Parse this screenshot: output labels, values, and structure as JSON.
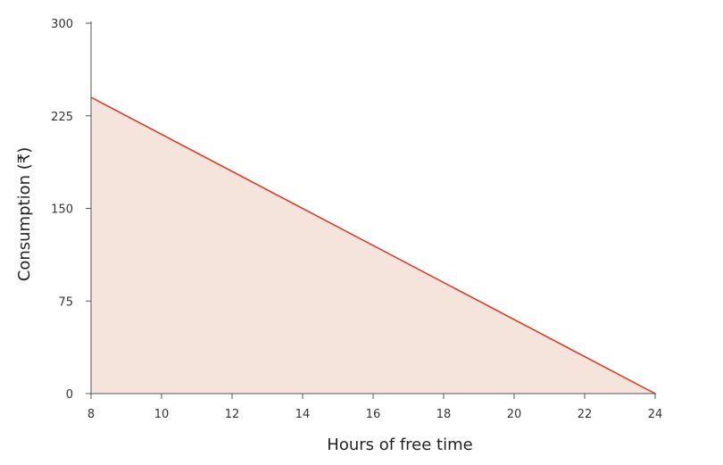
{
  "chart_data": {
    "type": "area",
    "title": "",
    "xlabel": "Hours of free time",
    "ylabel": "Consumption (₹)",
    "xlim": [
      8,
      24
    ],
    "ylim": [
      0,
      300
    ],
    "xticks": [
      8,
      10,
      12,
      14,
      16,
      18,
      20,
      22,
      24
    ],
    "yticks": [
      0,
      75,
      150,
      225,
      300
    ],
    "grid": false,
    "series": [
      {
        "x": [
          8,
          24
        ],
        "y": [
          240,
          0
        ],
        "line_color": "#e0301e",
        "fill_color": "#f5e4dc"
      }
    ]
  }
}
